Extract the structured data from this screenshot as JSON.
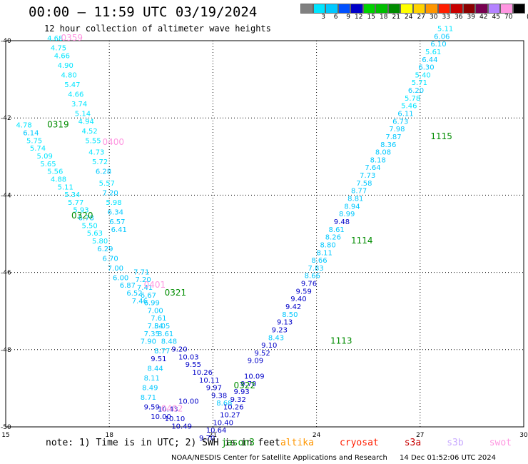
{
  "header": {
    "title": "00:00 – 11:59 UTC 03/19/2024",
    "subtitle": "12 hour collection of altimeter wave heights"
  },
  "colorbar": {
    "unit": "(ft)",
    "swatches": [
      {
        "color": "#808080",
        "label": ""
      },
      {
        "color": "#00e5ff",
        "label": "3"
      },
      {
        "color": "#00c8ff",
        "label": "6"
      },
      {
        "color": "#0050ff",
        "label": "9"
      },
      {
        "color": "#0000c8",
        "label": "12"
      },
      {
        "color": "#00d200",
        "label": "15"
      },
      {
        "color": "#00be00",
        "label": "18"
      },
      {
        "color": "#008c00",
        "label": "21"
      },
      {
        "color": "#ffff00",
        "label": "24"
      },
      {
        "color": "#ffd200",
        "label": "27"
      },
      {
        "color": "#ff9600",
        "label": "30"
      },
      {
        "color": "#ff1e00",
        "label": "33"
      },
      {
        "color": "#c80000",
        "label": "36"
      },
      {
        "color": "#8c0000",
        "label": "39"
      },
      {
        "color": "#780050",
        "label": "42"
      },
      {
        "color": "#b482ff",
        "label": "45"
      },
      {
        "color": "#ff96e1",
        "label": "70"
      },
      {
        "color": "#000000",
        "label": ""
      }
    ]
  },
  "footer": {
    "note": "note: 1) Time is in UTC; 2) SWH is in feet",
    "satellites": [
      {
        "name": "jason3",
        "color": "#008c00"
      },
      {
        "name": "altika",
        "color": "#ff9600"
      },
      {
        "name": "cryosat",
        "color": "#ff1e00"
      },
      {
        "name": "s3a",
        "color": "#c80000"
      },
      {
        "name": "s3b",
        "color": "#c8aaff"
      },
      {
        "name": "swot",
        "color": "#ff96e1"
      }
    ],
    "credit": "NOAA/NESDIS Center for Satellite Applications and Research",
    "timestamp": "14 Dec 01:52:06 UTC 2024"
  },
  "chart_data": {
    "type": "scatter",
    "title": "00:00 – 11:59 UTC 03/19/2024",
    "subtitle": "12 hour collection of altimeter wave heights",
    "xlim": [
      15,
      30
    ],
    "ylim": [
      -50,
      -40
    ],
    "x_ticks": [
      15,
      18,
      21,
      24,
      27,
      30
    ],
    "y_ticks": [
      -40,
      -42,
      -44,
      -46,
      -48,
      -50
    ],
    "grid": true,
    "tracks": [
      {
        "satellite": "swot",
        "label": "0359",
        "label_at": [
          16.6,
          -40.0
        ],
        "color": "#00e5ff",
        "points": [
          [
            16.2,
            -40.0,
            4.68
          ],
          [
            16.3,
            -40.25,
            4.75
          ],
          [
            16.4,
            -40.45,
            4.66
          ],
          [
            16.5,
            -40.7,
            4.9
          ],
          [
            16.6,
            -40.95,
            4.8
          ],
          [
            16.7,
            -41.2,
            5.47
          ],
          [
            16.8,
            -41.45,
            4.66
          ],
          [
            16.9,
            -41.7,
            3.74
          ],
          [
            17.0,
            -41.95,
            5.14
          ],
          [
            17.1,
            -42.15,
            4.94
          ],
          [
            17.2,
            -42.4,
            4.52
          ],
          [
            17.3,
            -42.65,
            5.55
          ],
          [
            17.4,
            -42.95,
            4.73
          ],
          [
            17.5,
            -43.2,
            5.72
          ],
          [
            17.6,
            -43.45,
            6.28
          ],
          [
            17.7,
            -43.75,
            5.57
          ],
          [
            17.8,
            -44.0,
            7.2
          ],
          [
            17.9,
            -44.25,
            5.98
          ],
          [
            17.95,
            -44.5,
            6.34
          ],
          [
            18.0,
            -44.75,
            6.57
          ],
          [
            18.05,
            -44.95,
            6.41
          ]
        ]
      },
      {
        "satellite": "jason3",
        "label": "0319",
        "label_at": [
          16.2,
          -42.25
        ],
        "color": "#00e5ff",
        "points": [
          [
            15.3,
            -42.25,
            4.78
          ],
          [
            15.5,
            -42.45,
            6.14
          ],
          [
            15.6,
            -42.65,
            5.75
          ],
          [
            15.7,
            -42.85,
            5.74
          ],
          [
            15.9,
            -43.05,
            5.09
          ],
          [
            16.0,
            -43.25,
            5.65
          ],
          [
            16.2,
            -43.45,
            5.56
          ],
          [
            16.3,
            -43.65,
            4.88
          ],
          [
            16.5,
            -43.85,
            5.11
          ],
          [
            16.7,
            -44.05,
            5.34
          ],
          [
            16.8,
            -44.25,
            5.77
          ],
          [
            16.95,
            -44.45,
            5.93
          ],
          [
            17.1,
            -44.65,
            6.78
          ],
          [
            17.2,
            -44.85,
            5.5
          ],
          [
            17.35,
            -45.05,
            5.63
          ],
          [
            17.5,
            -45.25,
            5.8
          ],
          [
            17.65,
            -45.45,
            6.29
          ],
          [
            17.8,
            -45.7,
            6.7
          ],
          [
            17.95,
            -45.95,
            7.0
          ],
          [
            18.1,
            -46.2,
            6.0
          ],
          [
            18.3,
            -46.4,
            6.87
          ],
          [
            18.5,
            -46.6,
            6.52
          ],
          [
            18.65,
            -46.8,
            7.46
          ]
        ]
      },
      {
        "satellite": "swot",
        "label": "0400",
        "label_at": [
          17.8,
          -42.7
        ],
        "color": "#00e5ff",
        "points": []
      },
      {
        "satellite": "jason3",
        "label": "0320",
        "label_at": [
          16.9,
          -44.6
        ],
        "color": "#00e5ff",
        "points": []
      },
      {
        "satellite": "swot",
        "label": "0401",
        "label_at": [
          19.0,
          -46.4
        ],
        "color": "#00c8ff",
        "points": [
          [
            18.7,
            -46.05,
            7.71
          ],
          [
            18.75,
            -46.25,
            7.2
          ],
          [
            18.8,
            -46.45,
            7.41
          ],
          [
            18.9,
            -46.65,
            6.67
          ],
          [
            19.0,
            -46.85,
            6.99
          ],
          [
            19.1,
            -47.05,
            7.0
          ],
          [
            19.2,
            -47.25,
            7.61
          ],
          [
            19.3,
            -47.45,
            8.05
          ],
          [
            19.4,
            -47.65,
            8.61
          ],
          [
            19.5,
            -47.85,
            8.48
          ]
        ]
      },
      {
        "satellite": "jason3",
        "label": "0321",
        "label_at": [
          19.6,
          -46.6
        ],
        "color": "#0000c8",
        "points": [
          [
            19.8,
            -48.05,
            9.2
          ],
          [
            20.0,
            -48.25,
            10.03
          ],
          [
            20.2,
            -48.45,
            9.55
          ],
          [
            20.4,
            -48.65,
            10.26
          ],
          [
            20.6,
            -48.85,
            10.11
          ],
          [
            20.8,
            -49.05,
            9.97
          ],
          [
            20.95,
            -49.25,
            9.38
          ],
          [
            21.1,
            -49.45,
            8.68
          ]
        ]
      },
      {
        "satellite": "jason3",
        "label": "0322",
        "label_at": [
          21.6,
          -49.0
        ],
        "color": "#0000c8",
        "points": [
          [
            21.9,
            -48.75,
            10.09
          ],
          [
            21.8,
            -48.95,
            9.7
          ],
          [
            21.6,
            -49.15,
            9.93
          ],
          [
            21.5,
            -49.35,
            9.32
          ],
          [
            21.3,
            -49.55,
            10.26
          ],
          [
            21.2,
            -49.75,
            10.27
          ],
          [
            21.0,
            -49.95,
            10.4
          ],
          [
            20.8,
            -50.15,
            10.64
          ],
          [
            20.6,
            -50.35,
            9.7
          ]
        ]
      },
      {
        "satellite": "swot",
        "label": "0402",
        "label_at": [
          19.5,
          -49.6
        ],
        "color": "#00c8ff",
        "points": [
          [
            19.3,
            -48.1,
            8.77
          ],
          [
            19.2,
            -48.3,
            9.51
          ],
          [
            19.1,
            -48.55,
            8.44
          ],
          [
            19.0,
            -48.8,
            8.11
          ],
          [
            18.95,
            -49.05,
            8.49
          ],
          [
            18.9,
            -49.3,
            8.71
          ],
          [
            19.0,
            -49.55,
            9.59
          ],
          [
            19.2,
            -49.8,
            10.0
          ],
          [
            19.4,
            -49.6,
            10.43
          ],
          [
            19.6,
            -49.85,
            10.1
          ],
          [
            19.8,
            -50.05,
            10.49
          ],
          [
            20.0,
            -49.4,
            10.0
          ],
          [
            19.1,
            -47.45,
            7.54
          ],
          [
            19.0,
            -47.65,
            7.35
          ],
          [
            18.9,
            -47.85,
            7.9
          ]
        ]
      },
      {
        "satellite": "jason3",
        "label": "1113",
        "label_at": [
          24.4,
          -47.85
        ],
        "color": "#0000c8",
        "points": [
          [
            22.0,
            -48.35,
            9.09
          ],
          [
            22.2,
            -48.15,
            9.52
          ],
          [
            22.4,
            -47.95,
            9.1
          ],
          [
            22.6,
            -47.75,
            8.43
          ],
          [
            22.7,
            -47.55,
            9.23
          ],
          [
            22.85,
            -47.35,
            9.13
          ],
          [
            23.0,
            -47.15,
            8.5
          ],
          [
            23.1,
            -46.95,
            9.42
          ],
          [
            23.25,
            -46.75,
            9.4
          ],
          [
            23.4,
            -46.55,
            9.59
          ],
          [
            23.55,
            -46.35,
            9.76
          ],
          [
            23.65,
            -46.15,
            8.66
          ],
          [
            23.75,
            -45.95,
            7.83
          ],
          [
            23.85,
            -45.75,
            8.66
          ],
          [
            24.0,
            -45.55,
            8.11
          ],
          [
            24.1,
            -45.35,
            8.8
          ],
          [
            24.25,
            -45.15,
            8.26
          ],
          [
            24.35,
            -44.95,
            8.61
          ],
          [
            24.5,
            -44.75,
            9.48
          ],
          [
            24.65,
            -44.55,
            8.99
          ],
          [
            24.8,
            -44.35,
            8.94
          ],
          [
            24.9,
            -44.15,
            8.81
          ],
          [
            25.0,
            -43.95,
            8.77
          ],
          [
            25.15,
            -43.75,
            7.58
          ],
          [
            25.25,
            -43.55,
            7.73
          ],
          [
            25.4,
            -43.35,
            7.64
          ],
          [
            25.55,
            -43.15,
            8.18
          ],
          [
            25.7,
            -42.95,
            8.08
          ],
          [
            25.85,
            -42.75,
            8.36
          ],
          [
            26.0,
            -42.55,
            7.87
          ],
          [
            26.1,
            -42.35,
            7.98
          ],
          [
            26.2,
            -42.15,
            6.73
          ],
          [
            26.35,
            -41.95,
            6.11
          ],
          [
            26.45,
            -41.75,
            5.46
          ],
          [
            26.55,
            -41.55,
            5.78
          ],
          [
            26.65,
            -41.35,
            6.2
          ],
          [
            26.75,
            -41.15,
            5.71
          ],
          [
            26.85,
            -40.95,
            5.4
          ],
          [
            26.95,
            -40.75,
            6.3
          ],
          [
            27.05,
            -40.55,
            6.44
          ],
          [
            27.15,
            -40.35,
            5.61
          ],
          [
            27.3,
            -40.15,
            6.1
          ],
          [
            27.4,
            -39.95,
            6.06
          ],
          [
            27.5,
            -39.75,
            5.11
          ]
        ]
      },
      {
        "satellite": "jason3",
        "label": "1114",
        "label_at": [
          25.0,
          -45.25
        ],
        "color": "#00c8ff",
        "points": []
      },
      {
        "satellite": "jason3",
        "label": "1115",
        "label_at": [
          27.3,
          -42.55
        ],
        "color": "#00c8ff",
        "points": []
      }
    ]
  }
}
